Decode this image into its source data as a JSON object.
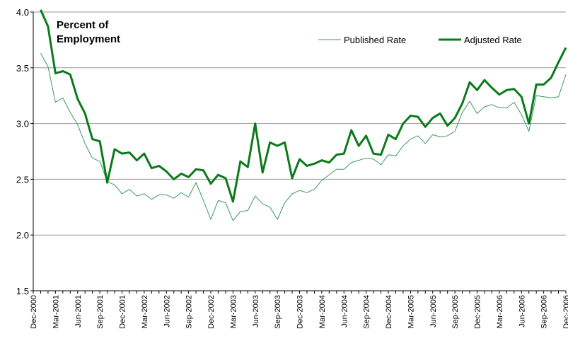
{
  "chart_data": {
    "type": "line",
    "title": "Percent of Employment",
    "categories": [
      "Dec-2000",
      null,
      null,
      "Mar-2001",
      null,
      null,
      "Jun-2001",
      null,
      null,
      "Sep-2001",
      null,
      null,
      "Dec-2001",
      null,
      null,
      "Mar-2002",
      null,
      null,
      "Jun-2002",
      null,
      null,
      "Sep-2002",
      null,
      null,
      "Dec-2002",
      null,
      null,
      "Mar-2003",
      null,
      null,
      "Jun-2003",
      null,
      null,
      "Sep-2003",
      null,
      null,
      "Dec-2003",
      null,
      null,
      "Mar-2004",
      null,
      null,
      "Jun-2004",
      null,
      null,
      "Sep-2004",
      null,
      null,
      "Dec-2004",
      null,
      null,
      "Mar-2005",
      null,
      null,
      "Jun-2005",
      null,
      null,
      "Sep-2005",
      null,
      null,
      "Dec-2005",
      null,
      null,
      "Mar-2006",
      null,
      null,
      "Jun-2006",
      null,
      null,
      "Sep-2006",
      null,
      null,
      "Dec-2006"
    ],
    "series": [
      {
        "name": "Published Rate",
        "color": "#3a9a5c",
        "width": 1,
        "values": [
          null,
          3.63,
          3.51,
          3.19,
          3.23,
          3.1,
          2.99,
          2.82,
          2.69,
          2.66,
          2.48,
          2.45,
          2.37,
          2.41,
          2.35,
          2.37,
          2.32,
          2.36,
          2.36,
          2.33,
          2.38,
          2.34,
          2.47,
          2.31,
          2.14,
          2.31,
          2.29,
          2.13,
          2.21,
          2.22,
          2.35,
          2.28,
          2.25,
          2.14,
          2.29,
          2.37,
          2.4,
          2.38,
          2.41,
          2.49,
          2.54,
          2.59,
          2.59,
          2.65,
          2.67,
          2.69,
          2.68,
          2.63,
          2.72,
          2.71,
          2.8,
          2.86,
          2.89,
          2.82,
          2.9,
          2.88,
          2.89,
          2.93,
          3.1,
          3.2,
          3.09,
          3.15,
          3.17,
          3.14,
          3.14,
          3.19,
          3.08,
          2.93,
          3.25,
          3.24,
          3.23,
          3.24,
          3.44
        ]
      },
      {
        "name": "Adjusted Rate",
        "color": "#0b7a1c",
        "width": 3,
        "values": [
          null,
          4.02,
          3.87,
          3.45,
          3.47,
          3.44,
          3.22,
          3.09,
          2.86,
          2.84,
          2.47,
          2.77,
          2.73,
          2.74,
          2.67,
          2.73,
          2.6,
          2.62,
          2.57,
          2.5,
          2.55,
          2.52,
          2.59,
          2.58,
          2.46,
          2.54,
          2.51,
          2.3,
          2.66,
          2.61,
          3.0,
          2.56,
          2.83,
          2.8,
          2.83,
          2.51,
          2.68,
          2.62,
          2.64,
          2.67,
          2.65,
          2.72,
          2.73,
          2.94,
          2.8,
          2.89,
          2.73,
          2.72,
          2.9,
          2.86,
          3.0,
          3.07,
          3.06,
          2.97,
          3.05,
          3.09,
          2.98,
          3.05,
          3.18,
          3.37,
          3.3,
          3.39,
          3.32,
          3.26,
          3.3,
          3.31,
          3.24,
          3.0,
          3.35,
          3.35,
          3.41,
          3.55,
          3.68
        ]
      }
    ],
    "ylim": [
      1.5,
      4.0
    ],
    "yticks": [
      1.5,
      {
        "value": 2.0,
        "label": "2.0"
      },
      2.5,
      {
        "value": 3.0,
        "label": "3.0"
      },
      3.5,
      {
        "value": 4.0,
        "label": "4.0"
      }
    ],
    "grid": true
  }
}
